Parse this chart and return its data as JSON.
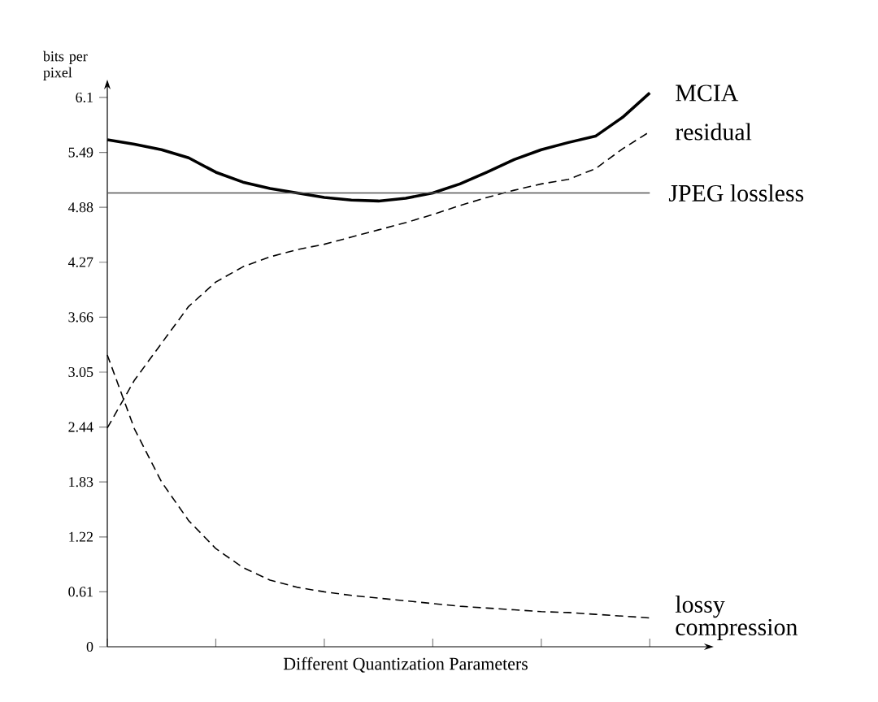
{
  "chart_data": {
    "type": "line",
    "xlabel": "Different Quantization Parameters",
    "ylabel": "bits per pixel",
    "categories": [
      null,
      null,
      null,
      null,
      null,
      null,
      null,
      null,
      null,
      null,
      null,
      null,
      null,
      null,
      null,
      null,
      null,
      null,
      null,
      null,
      null
    ],
    "ylim": [
      0,
      6.19
    ],
    "yticks": [
      0,
      0.61,
      1.22,
      1.83,
      2.44,
      3.05,
      3.66,
      4.27,
      4.88,
      5.49,
      6.1
    ],
    "tick_labels": "y",
    "series": [
      {
        "name": "MCIA",
        "color": "#000000",
        "line_style": "solid",
        "values": [
          5.63,
          5.58,
          5.52,
          5.43,
          5.27,
          5.16,
          5.09,
          5.04,
          4.99,
          4.96,
          4.95,
          4.98,
          5.04,
          5.14,
          5.27,
          5.41,
          5.52,
          5.6,
          5.67,
          5.88,
          6.15
        ]
      },
      {
        "name": "residual",
        "color": "#000000",
        "line_style": "dashed",
        "values": [
          2.43,
          2.96,
          3.37,
          3.78,
          4.05,
          4.22,
          4.33,
          4.41,
          4.47,
          4.55,
          4.63,
          4.71,
          4.8,
          4.9,
          4.99,
          5.07,
          5.14,
          5.19,
          5.31,
          5.53,
          5.72
        ]
      },
      {
        "name": "lossy compression",
        "color": "#000000",
        "line_style": "dashed",
        "values": [
          3.24,
          2.42,
          1.83,
          1.4,
          1.09,
          0.88,
          0.74,
          0.66,
          0.61,
          0.57,
          0.54,
          0.51,
          0.48,
          0.45,
          0.43,
          0.41,
          0.39,
          0.38,
          0.36,
          0.34,
          0.32
        ]
      }
    ],
    "ref_lines": [
      {
        "axis": "y",
        "value": 5.04,
        "label": "JPEG lossless",
        "color": "#555555",
        "line_style": "solid"
      }
    ]
  }
}
